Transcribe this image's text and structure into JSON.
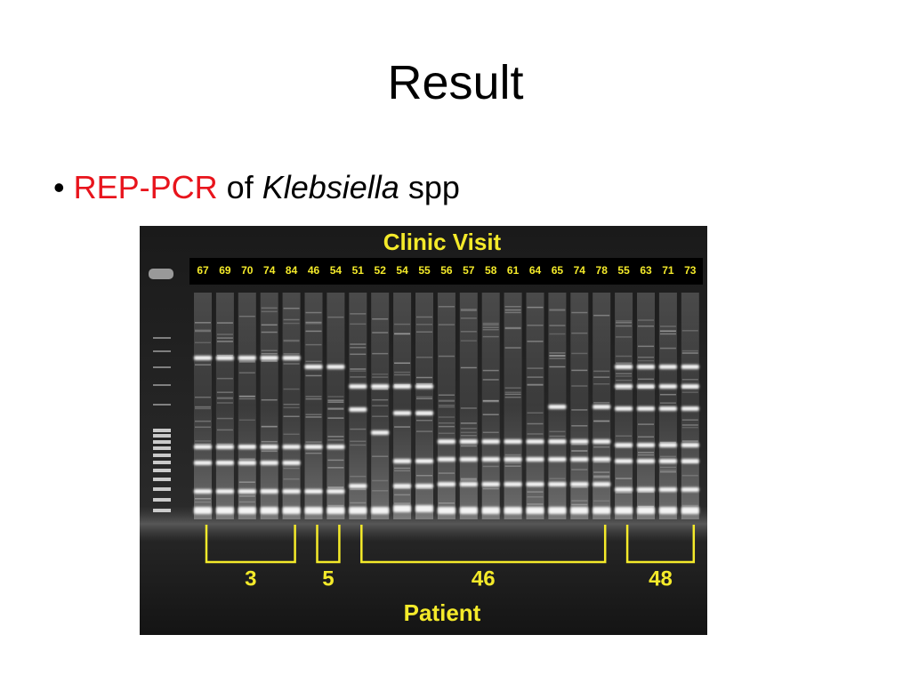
{
  "title": "Result",
  "bullet": {
    "marker": "•",
    "term": "REP-PCR",
    "connector": "of",
    "genus": "Klebsiella",
    "suffix": "spp"
  },
  "gel": {
    "header": "Clinic Visit",
    "lanes": [
      67,
      69,
      70,
      74,
      84,
      46,
      54,
      51,
      52,
      54,
      55,
      56,
      57,
      58,
      61,
      64,
      65,
      74,
      78,
      55,
      63,
      71,
      73
    ],
    "patients": [
      3,
      5,
      46,
      48
    ],
    "footer": "Patient"
  }
}
